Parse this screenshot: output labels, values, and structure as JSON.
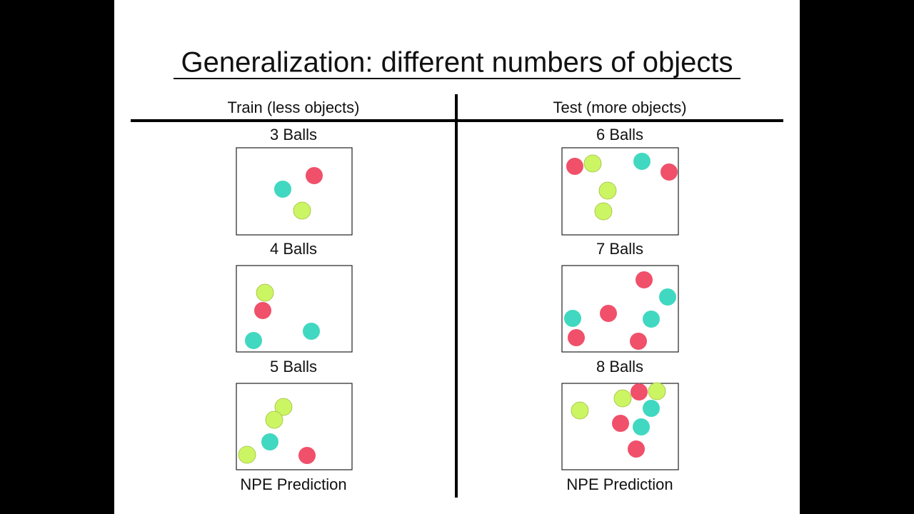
{
  "title": "Generalization: different numbers of objects",
  "columns": [
    {
      "header": "Train (less objects)",
      "panels": [
        "3 Balls",
        "4 Balls",
        "5 Balls"
      ],
      "footer": "NPE Prediction"
    },
    {
      "header": "Test (more objects)",
      "panels": [
        "6 Balls",
        "7 Balls",
        "8 Balls"
      ],
      "footer": "NPE Prediction"
    }
  ]
}
